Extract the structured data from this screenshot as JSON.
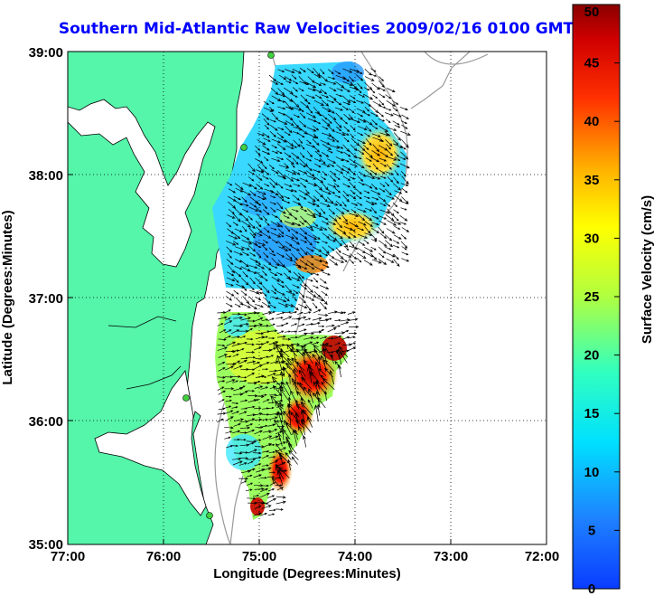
{
  "title": "Southern Mid-Atlantic Raw Velocities 2009/02/16 0100 GMT",
  "chart_data": {
    "type": "map",
    "title": "Southern Mid-Atlantic Raw Velocities 2009/02/16 0100 GMT",
    "xlabel": "Longitude (Degrees:Minutes)",
    "ylabel": "Latitude (Degrees:Minutes)",
    "x_ticks": [
      "77:00",
      "76:00",
      "75:00",
      "74:00",
      "73:00",
      "72:00"
    ],
    "y_ticks": [
      "39:00",
      "38:00",
      "37:00",
      "36:00",
      "35:00"
    ],
    "xlim": [
      -77,
      -72
    ],
    "ylim": [
      35,
      39
    ],
    "grid": "dotted",
    "colorbar": {
      "label": "Surface Velocity (cm/s)",
      "range": [
        0,
        50
      ],
      "ticks": [
        "50",
        "45",
        "40",
        "35",
        "30",
        "25",
        "20",
        "15",
        "10",
        "5",
        "0"
      ],
      "colormap": "jet"
    },
    "colors": {
      "land": "#55f5aa",
      "title": "#0000ff"
    }
  }
}
